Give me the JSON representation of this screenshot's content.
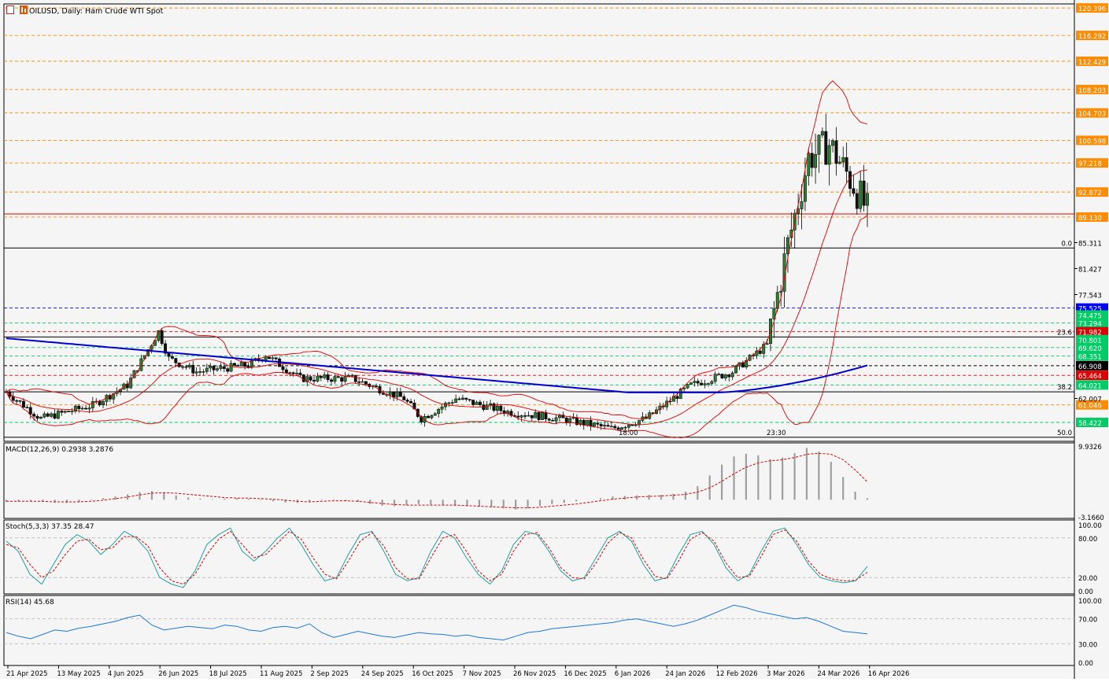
{
  "title": "OILUSD, Daily:  Ham Crude WTI Spot",
  "chart_data": [
    {
      "type": "line",
      "panel": "price",
      "series": [],
      "x_ticks": [
        "21 Apr 2025",
        "13 May 2025",
        "4 Jun 2025",
        "26 Jun 2025",
        "18 Jul 2025",
        "11 Aug 2025",
        "2 Sep 2025",
        "24 Sep 2025",
        "16 Oct 2025",
        "7 Nov 2025",
        "26 Nov 2025",
        "16 Dec 2025",
        "6 Jan 2026",
        "24 Jan 2026",
        "12 Feb 2026",
        "3 Mar 2026",
        "24 Mar 2026",
        "16 Apr 2026"
      ],
      "y_ticks": [
        120.396,
        116.292,
        112.429,
        108.203,
        104.703,
        100.598,
        97.218,
        92.872,
        89.13,
        85.311,
        81.427,
        77.543,
        75.525,
        73.294,
        71.982,
        69.62,
        68.351,
        66.908,
        65.464,
        64.021,
        62.007,
        61.046,
        58.422
      ],
      "level_lines": [
        {
          "value": 120.396,
          "color": "#ff8c00",
          "style": "dashed"
        },
        {
          "value": 116.292,
          "color": "#ff8c00",
          "style": "dashed"
        },
        {
          "value": 112.429,
          "color": "#ff8c00",
          "style": "dashed"
        },
        {
          "value": 108.203,
          "color": "#ff8c00",
          "style": "dashed"
        },
        {
          "value": 104.703,
          "color": "#ff8c00",
          "style": "dashed"
        },
        {
          "value": 100.598,
          "color": "#ff8c00",
          "style": "dashed"
        },
        {
          "value": 97.218,
          "color": "#ff8c00",
          "style": "dashed"
        },
        {
          "value": 92.872,
          "color": "#ff8c00",
          "style": "dashed"
        },
        {
          "value": 89.13,
          "color": "#ff8c00",
          "style": "dashed"
        },
        {
          "value": 75.525,
          "color": "#0000ff",
          "style": "dashed"
        },
        {
          "value": 73.294,
          "color": "#00cc66",
          "style": "dashed"
        },
        {
          "value": 71.982,
          "color": "#dd0000",
          "style": "dashed"
        },
        {
          "value": 69.62,
          "color": "#00cc66",
          "style": "dashed"
        },
        {
          "value": 68.351,
          "color": "#00cc66",
          "style": "dashed"
        },
        {
          "value": 66.908,
          "color": "#000000",
          "style": "dashed"
        },
        {
          "value": 65.464,
          "color": "#dd0000",
          "style": "dashed"
        },
        {
          "value": 64.021,
          "color": "#00cc66",
          "style": "dashed"
        },
        {
          "value": 61.046,
          "color": "#ff8c00",
          "style": "dashed"
        },
        {
          "value": 58.422,
          "color": "#00cc66",
          "style": "dashed"
        }
      ],
      "price_tags": [
        {
          "value": "120.396",
          "bg": "#ff8c00"
        },
        {
          "value": "116.292",
          "bg": "#ff8c00"
        },
        {
          "value": "112.429",
          "bg": "#ff8c00"
        },
        {
          "value": "108.203",
          "bg": "#ff8c00"
        },
        {
          "value": "104.703",
          "bg": "#ff8c00"
        },
        {
          "value": "100.598",
          "bg": "#ff8c00"
        },
        {
          "value": "97.218",
          "bg": "#ff8c00"
        },
        {
          "value": "92.872",
          "bg": "#ff8c00"
        },
        {
          "value": "89.130",
          "bg": "#ff8c00"
        },
        {
          "value": "75.525",
          "bg": "#0000ff"
        },
        {
          "value": "74.475",
          "bg": "#00cc66"
        },
        {
          "value": "73.294",
          "bg": "#00cc66"
        },
        {
          "value": "71.982",
          "bg": "#dd0000"
        },
        {
          "value": "70.801",
          "bg": "#00cc66"
        },
        {
          "value": "69.620",
          "bg": "#00cc66"
        },
        {
          "value": "68.351",
          "bg": "#00cc66"
        },
        {
          "value": "66.908",
          "bg": "#000000"
        },
        {
          "value": "65.464",
          "bg": "#dd0000"
        },
        {
          "value": "64.021",
          "bg": "#00cc66"
        },
        {
          "value": "61.046",
          "bg": "#ff8c00"
        },
        {
          "value": "58.422",
          "bg": "#00cc66"
        }
      ],
      "plain_ticks": [
        "85.311",
        "81.427",
        "77.543",
        "62.007"
      ],
      "fib_levels": [
        {
          "label": "0.0",
          "value": 84.5
        },
        {
          "label": "23.6",
          "value": 71.2
        },
        {
          "label": "38.2",
          "value": 63.0
        },
        {
          "label": "50.0",
          "value": 56.2
        }
      ],
      "ylim": [
        55.6,
        121.0
      ],
      "annotations": [
        "18:00",
        "23:30"
      ]
    },
    {
      "type": "bar",
      "panel": "macd",
      "title": "MACD(12,26,9) 0.2938 3.2876",
      "y_ticks": [
        9.9326,
        -3.166
      ],
      "series": [
        {
          "name": "MACD",
          "style": "histogram",
          "color": "#9e9e9e",
          "values": [
            -0.4,
            -0.3,
            -0.2,
            -0.3,
            -0.5,
            -0.6,
            -0.4,
            -0.1,
            0.3,
            0.6,
            1.0,
            1.4,
            1.6,
            1.3,
            0.8,
            0.4,
            0.2,
            0.1,
            0.2,
            0.3,
            0.2,
            -0.1,
            -0.3,
            -0.5,
            -0.6,
            -0.4,
            -0.1,
            0.1,
            -0.2,
            -0.4,
            -0.8,
            -1.1,
            -1.2,
            -1.0,
            -0.8,
            -0.9,
            -1.0,
            -1.1,
            -1.2,
            -1.3,
            -1.4,
            -1.6,
            -1.8,
            -1.6,
            -1.2,
            -0.8,
            -0.6,
            -0.3,
            0.0,
            0.3,
            0.6,
            0.7,
            0.8,
            0.9,
            0.9,
            1.1,
            1.5,
            2.5,
            4.5,
            6.5,
            8.0,
            8.5,
            8.2,
            7.5,
            7.8,
            8.6,
            9.6,
            8.9,
            7.0,
            4.2,
            1.5,
            0.29
          ]
        },
        {
          "name": "Signal",
          "style": "dashed",
          "color": "#dd0000",
          "values": [
            -0.3,
            -0.3,
            -0.3,
            -0.3,
            -0.4,
            -0.4,
            -0.4,
            -0.3,
            -0.1,
            0.2,
            0.5,
            0.9,
            1.2,
            1.3,
            1.2,
            1.0,
            0.8,
            0.6,
            0.4,
            0.3,
            0.3,
            0.2,
            0.1,
            -0.1,
            -0.3,
            -0.4,
            -0.3,
            -0.2,
            -0.2,
            -0.3,
            -0.5,
            -0.7,
            -0.9,
            -1.0,
            -1.0,
            -1.0,
            -1.0,
            -1.0,
            -1.1,
            -1.2,
            -1.3,
            -1.4,
            -1.5,
            -1.5,
            -1.4,
            -1.2,
            -1.0,
            -0.8,
            -0.5,
            -0.2,
            0.1,
            0.3,
            0.5,
            0.6,
            0.7,
            0.8,
            1.0,
            1.4,
            2.2,
            3.4,
            4.8,
            6.0,
            6.8,
            7.2,
            7.4,
            7.8,
            8.4,
            8.6,
            8.4,
            7.4,
            5.5,
            3.29
          ]
        }
      ]
    },
    {
      "type": "line",
      "panel": "stochastic",
      "title": "Stoch(5,3,3) 37.35 28.47",
      "y_ticks": [
        100.0,
        80.0,
        20.0,
        0.0
      ],
      "ylim": [
        0,
        100
      ],
      "series": [
        {
          "name": "%K",
          "color": "#20a0a0",
          "values": [
            75,
            60,
            25,
            10,
            40,
            70,
            85,
            75,
            55,
            70,
            90,
            80,
            60,
            20,
            10,
            5,
            30,
            70,
            85,
            95,
            60,
            45,
            60,
            80,
            95,
            70,
            40,
            15,
            20,
            55,
            85,
            90,
            60,
            25,
            15,
            20,
            60,
            90,
            80,
            50,
            25,
            10,
            30,
            70,
            90,
            85,
            60,
            30,
            15,
            20,
            50,
            80,
            90,
            75,
            40,
            15,
            20,
            55,
            85,
            90,
            70,
            35,
            15,
            25,
            60,
            90,
            95,
            70,
            40,
            20,
            15,
            12,
            15,
            37
          ]
        },
        {
          "name": "%D",
          "color": "#dd0000",
          "style": "dashed",
          "values": [
            70,
            65,
            40,
            20,
            30,
            55,
            75,
            78,
            62,
            65,
            82,
            82,
            68,
            35,
            15,
            10,
            25,
            55,
            78,
            90,
            70,
            50,
            55,
            72,
            90,
            78,
            50,
            25,
            18,
            45,
            75,
            88,
            68,
            35,
            18,
            18,
            50,
            80,
            85,
            60,
            30,
            15,
            25,
            60,
            85,
            88,
            65,
            35,
            20,
            18,
            42,
            72,
            88,
            80,
            48,
            22,
            18,
            45,
            78,
            88,
            75,
            42,
            20,
            22,
            52,
            85,
            92,
            75,
            45,
            25,
            18,
            15,
            16,
            28
          ]
        }
      ]
    },
    {
      "type": "line",
      "panel": "rsi",
      "title": "RSI(14) 45.68",
      "y_ticks": [
        100.0,
        70.0,
        30.0,
        0.0
      ],
      "ylim": [
        0,
        100
      ],
      "series": [
        {
          "name": "RSI",
          "color": "#1e78d2",
          "values": [
            48,
            42,
            38,
            45,
            52,
            50,
            55,
            58,
            62,
            66,
            72,
            76,
            60,
            52,
            55,
            58,
            56,
            54,
            60,
            58,
            52,
            50,
            56,
            58,
            55,
            62,
            48,
            40,
            45,
            50,
            46,
            42,
            40,
            44,
            48,
            46,
            45,
            42,
            44,
            40,
            38,
            36,
            42,
            48,
            50,
            54,
            56,
            58,
            60,
            62,
            64,
            68,
            70,
            66,
            62,
            58,
            62,
            68,
            76,
            84,
            92,
            88,
            82,
            78,
            74,
            70,
            72,
            66,
            58,
            50,
            48,
            45.68
          ]
        }
      ]
    }
  ]
}
